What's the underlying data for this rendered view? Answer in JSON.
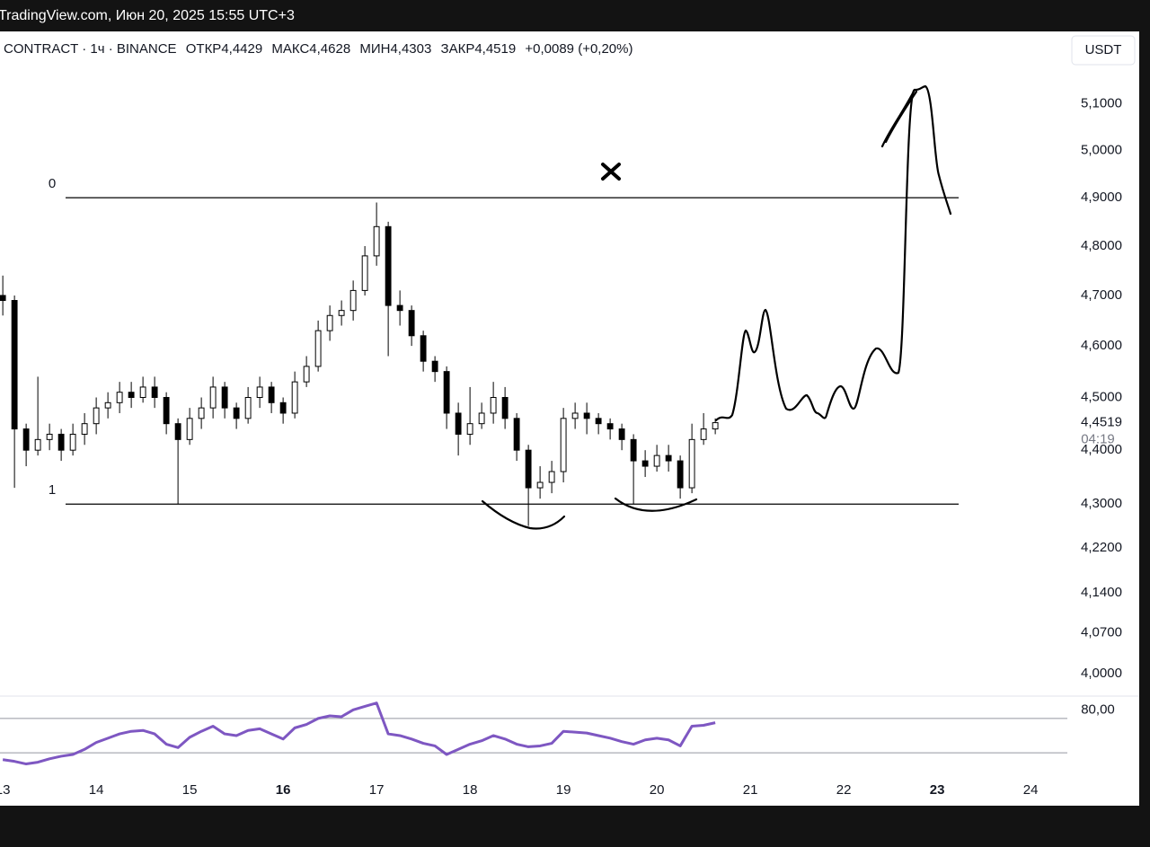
{
  "header": {
    "source": "TradingView.com, Июн 20, 2025 15:55 UTC+3"
  },
  "chart_data": {
    "type": "candlestick",
    "symbol": "CONTRACT · 1ч · BINANCE",
    "ohlc_legend": [
      {
        "label": "ОТКР",
        "value": "4,4429"
      },
      {
        "label": "МАКС",
        "value": "4,4628"
      },
      {
        "label": "МИН",
        "value": "4,4303"
      },
      {
        "label": "ЗАКР",
        "value": "4,4519"
      }
    ],
    "change": "+0,0089 (+0,20%)",
    "currency": "USDT",
    "last_price_label": "4,4519",
    "countdown": "04:19",
    "log_scale": true,
    "up_color": "#ffffff",
    "down_color": "#000000",
    "wick_color": "#000000",
    "x": [
      13,
      13.125,
      13.25,
      13.375,
      13.5,
      13.625,
      13.75,
      13.875,
      14,
      14.125,
      14.25,
      14.375,
      14.5,
      14.625,
      14.75,
      14.875,
      15,
      15.125,
      15.25,
      15.375,
      15.5,
      15.625,
      15.75,
      15.875,
      16,
      16.125,
      16.25,
      16.375,
      16.5,
      16.625,
      16.75,
      16.875,
      17,
      17.125,
      17.25,
      17.375,
      17.5,
      17.625,
      17.75,
      17.875,
      18,
      18.125,
      18.25,
      18.375,
      18.5,
      18.625,
      18.75,
      18.875,
      19,
      19.125,
      19.25,
      19.375,
      19.5,
      19.625,
      19.75,
      19.875,
      20,
      20.125,
      20.25,
      20.375,
      20.5,
      20.625
    ],
    "open": [
      4.7,
      4.69,
      4.44,
      4.4,
      4.42,
      4.43,
      4.4,
      4.43,
      4.45,
      4.48,
      4.49,
      4.51,
      4.5,
      4.52,
      4.5,
      4.45,
      4.42,
      4.46,
      4.48,
      4.52,
      4.48,
      4.46,
      4.5,
      4.52,
      4.49,
      4.47,
      4.53,
      4.56,
      4.63,
      4.66,
      4.67,
      4.71,
      4.78,
      4.84,
      4.68,
      4.67,
      4.62,
      4.57,
      4.55,
      4.47,
      4.43,
      4.45,
      4.47,
      4.5,
      4.46,
      4.4,
      4.33,
      4.34,
      4.36,
      4.46,
      4.47,
      4.46,
      4.45,
      4.44,
      4.42,
      4.38,
      4.37,
      4.39,
      4.38,
      4.33,
      4.42,
      4.44
    ],
    "high": [
      4.74,
      4.7,
      4.45,
      4.54,
      4.45,
      4.44,
      4.45,
      4.47,
      4.5,
      4.51,
      4.53,
      4.53,
      4.54,
      4.54,
      4.51,
      4.46,
      4.48,
      4.5,
      4.54,
      4.53,
      4.49,
      4.52,
      4.54,
      4.53,
      4.5,
      4.55,
      4.58,
      4.65,
      4.68,
      4.69,
      4.73,
      4.8,
      4.89,
      4.85,
      4.71,
      4.68,
      4.63,
      4.58,
      4.56,
      4.49,
      4.52,
      4.49,
      4.53,
      4.52,
      4.47,
      4.41,
      4.37,
      4.38,
      4.48,
      4.49,
      4.49,
      4.47,
      4.46,
      4.45,
      4.43,
      4.4,
      4.41,
      4.41,
      4.39,
      4.45,
      4.47,
      4.46
    ],
    "low": [
      4.66,
      4.33,
      4.37,
      4.39,
      4.4,
      4.38,
      4.39,
      4.41,
      4.43,
      4.46,
      4.47,
      4.48,
      4.49,
      4.48,
      4.43,
      4.3,
      4.41,
      4.44,
      4.46,
      4.46,
      4.44,
      4.45,
      4.48,
      4.47,
      4.45,
      4.46,
      4.52,
      4.55,
      4.61,
      4.64,
      4.65,
      4.7,
      4.76,
      4.58,
      4.64,
      4.6,
      4.55,
      4.53,
      4.44,
      4.39,
      4.41,
      4.44,
      4.45,
      4.44,
      4.38,
      4.26,
      4.31,
      4.32,
      4.34,
      4.44,
      4.43,
      4.43,
      4.42,
      4.4,
      4.3,
      4.35,
      4.36,
      4.36,
      4.31,
      4.32,
      4.41,
      4.43
    ],
    "close": [
      4.69,
      4.44,
      4.4,
      4.42,
      4.43,
      4.4,
      4.43,
      4.45,
      4.48,
      4.49,
      4.51,
      4.5,
      4.52,
      4.5,
      4.45,
      4.42,
      4.46,
      4.48,
      4.52,
      4.48,
      4.46,
      4.5,
      4.52,
      4.49,
      4.47,
      4.53,
      4.56,
      4.63,
      4.66,
      4.67,
      4.71,
      4.78,
      4.84,
      4.68,
      4.67,
      4.62,
      4.57,
      4.55,
      4.47,
      4.43,
      4.45,
      4.47,
      4.5,
      4.46,
      4.4,
      4.33,
      4.34,
      4.36,
      4.46,
      4.47,
      4.46,
      4.45,
      4.44,
      4.42,
      4.38,
      4.37,
      4.39,
      4.38,
      4.33,
      4.42,
      4.44,
      4.4519
    ],
    "xlim": [
      12.97,
      24.4
    ],
    "xticks": [
      13,
      14,
      15,
      16,
      17,
      18,
      19,
      20,
      21,
      22,
      23,
      24
    ],
    "major_xticks": [
      16,
      23
    ],
    "ylim": [
      3.962,
      5.26
    ],
    "yticks": [
      {
        "value": 4.0,
        "label": "4,0000"
      },
      {
        "value": 4.07,
        "label": "4,0700"
      },
      {
        "value": 4.14,
        "label": "4,1400"
      },
      {
        "value": 4.22,
        "label": "4,2200"
      },
      {
        "value": 4.3,
        "label": "4,3000"
      },
      {
        "value": 4.4,
        "label": "4,4000"
      },
      {
        "value": 4.5,
        "label": "4,5000"
      },
      {
        "value": 4.6,
        "label": "4,6000"
      },
      {
        "value": 4.7,
        "label": "4,7000"
      },
      {
        "value": 4.8,
        "label": "4,8000"
      },
      {
        "value": 4.9,
        "label": "4,9000"
      },
      {
        "value": 5.0,
        "label": "5,0000"
      },
      {
        "value": 5.1,
        "label": "5,1000"
      }
    ],
    "levels": [
      {
        "value": 4.9,
        "label": "0"
      },
      {
        "value": 4.3,
        "label": "1"
      }
    ],
    "rsi": {
      "color": "#7e57c2",
      "values": [
        22,
        20,
        17,
        19,
        23,
        26,
        28,
        34,
        42,
        47,
        52,
        55,
        56,
        52,
        40,
        36,
        48,
        55,
        61,
        52,
        50,
        56,
        58,
        52,
        46,
        59,
        63,
        70,
        73,
        72,
        80,
        84,
        88,
        52,
        50,
        46,
        41,
        38,
        28,
        34,
        40,
        44,
        50,
        46,
        40,
        37,
        38,
        41,
        55,
        54,
        53,
        50,
        47,
        43,
        40,
        45,
        47,
        45,
        38,
        61,
        62,
        65
      ],
      "ylim": [
        5,
        96
      ],
      "yticks": [
        {
          "value": 80,
          "label": "80,00"
        }
      ],
      "bands": [
        70,
        30
      ]
    }
  }
}
